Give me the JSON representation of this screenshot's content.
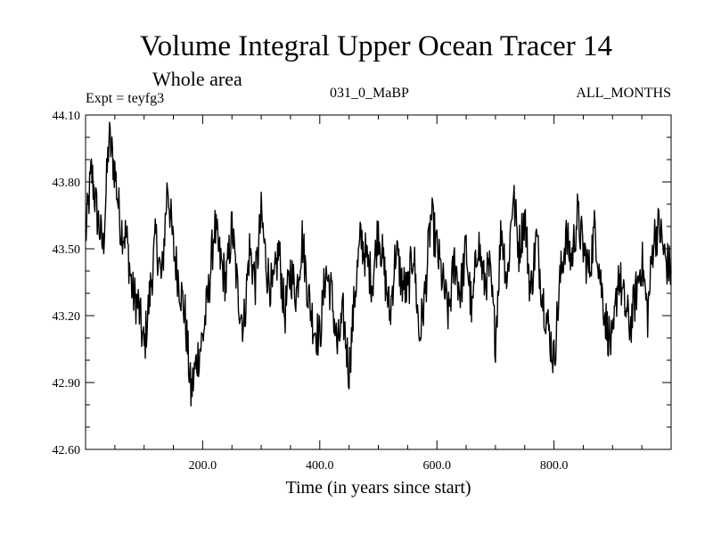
{
  "chart_data": {
    "type": "line",
    "title": "Volume Integral Upper Ocean Tracer 14",
    "subtitle": "Whole area",
    "expt_label": "Expt = teyfg3",
    "run_label": "031_0_MaBP",
    "months_label": "ALL_MONTHS",
    "xlabel": "Time (in years since start)",
    "ylabel": "",
    "xlim": [
      0,
      1000
    ],
    "ylim": [
      42.6,
      44.1
    ],
    "x_ticks": [
      "200.0",
      "400.0",
      "600.0",
      "800.0"
    ],
    "x_tick_values": [
      200,
      400,
      600,
      800
    ],
    "y_ticks": [
      "42.60",
      "42.90",
      "43.20",
      "43.50",
      "43.80",
      "44.10"
    ],
    "y_tick_values": [
      42.6,
      42.9,
      43.2,
      43.5,
      43.8,
      44.1
    ],
    "grid": false,
    "series": [
      {
        "name": "Tracer 14",
        "x": [
          0,
          10,
          20,
          30,
          40,
          50,
          60,
          70,
          80,
          90,
          100,
          110,
          120,
          130,
          140,
          150,
          160,
          170,
          180,
          190,
          200,
          210,
          220,
          230,
          240,
          250,
          260,
          270,
          280,
          290,
          300,
          310,
          320,
          330,
          340,
          350,
          360,
          370,
          380,
          390,
          400,
          410,
          420,
          430,
          440,
          450,
          460,
          470,
          480,
          490,
          500,
          510,
          520,
          530,
          540,
          550,
          560,
          570,
          580,
          590,
          600,
          610,
          620,
          630,
          640,
          650,
          660,
          670,
          680,
          690,
          700,
          710,
          720,
          730,
          740,
          750,
          760,
          770,
          780,
          790,
          800,
          810,
          820,
          830,
          840,
          850,
          860,
          870,
          880,
          890,
          900,
          910,
          920,
          930,
          940,
          950,
          960,
          970,
          980,
          990,
          1000
        ],
        "values": [
          43.55,
          43.85,
          43.65,
          43.5,
          44.0,
          43.85,
          43.6,
          43.55,
          43.3,
          43.25,
          43.05,
          43.3,
          43.55,
          43.35,
          43.8,
          43.5,
          43.35,
          43.2,
          42.85,
          43.0,
          43.1,
          43.3,
          43.6,
          43.45,
          43.35,
          43.6,
          43.3,
          43.15,
          43.5,
          43.35,
          43.65,
          43.4,
          43.3,
          43.5,
          43.2,
          43.4,
          43.3,
          43.55,
          43.3,
          43.15,
          43.1,
          43.4,
          43.3,
          43.05,
          43.2,
          42.95,
          43.3,
          43.55,
          43.45,
          43.35,
          43.6,
          43.4,
          43.2,
          43.5,
          43.35,
          43.3,
          43.5,
          43.1,
          43.3,
          43.65,
          43.5,
          43.35,
          43.2,
          43.45,
          43.3,
          43.5,
          43.2,
          43.55,
          43.35,
          43.4,
          43.1,
          43.6,
          43.35,
          43.75,
          43.5,
          43.65,
          43.3,
          43.55,
          43.3,
          43.15,
          43.0,
          43.35,
          43.55,
          43.45,
          43.65,
          43.5,
          43.4,
          43.6,
          43.35,
          43.15,
          43.05,
          43.4,
          43.25,
          43.15,
          43.3,
          43.45,
          43.2,
          43.55,
          43.6,
          43.45,
          43.4
        ]
      }
    ]
  }
}
